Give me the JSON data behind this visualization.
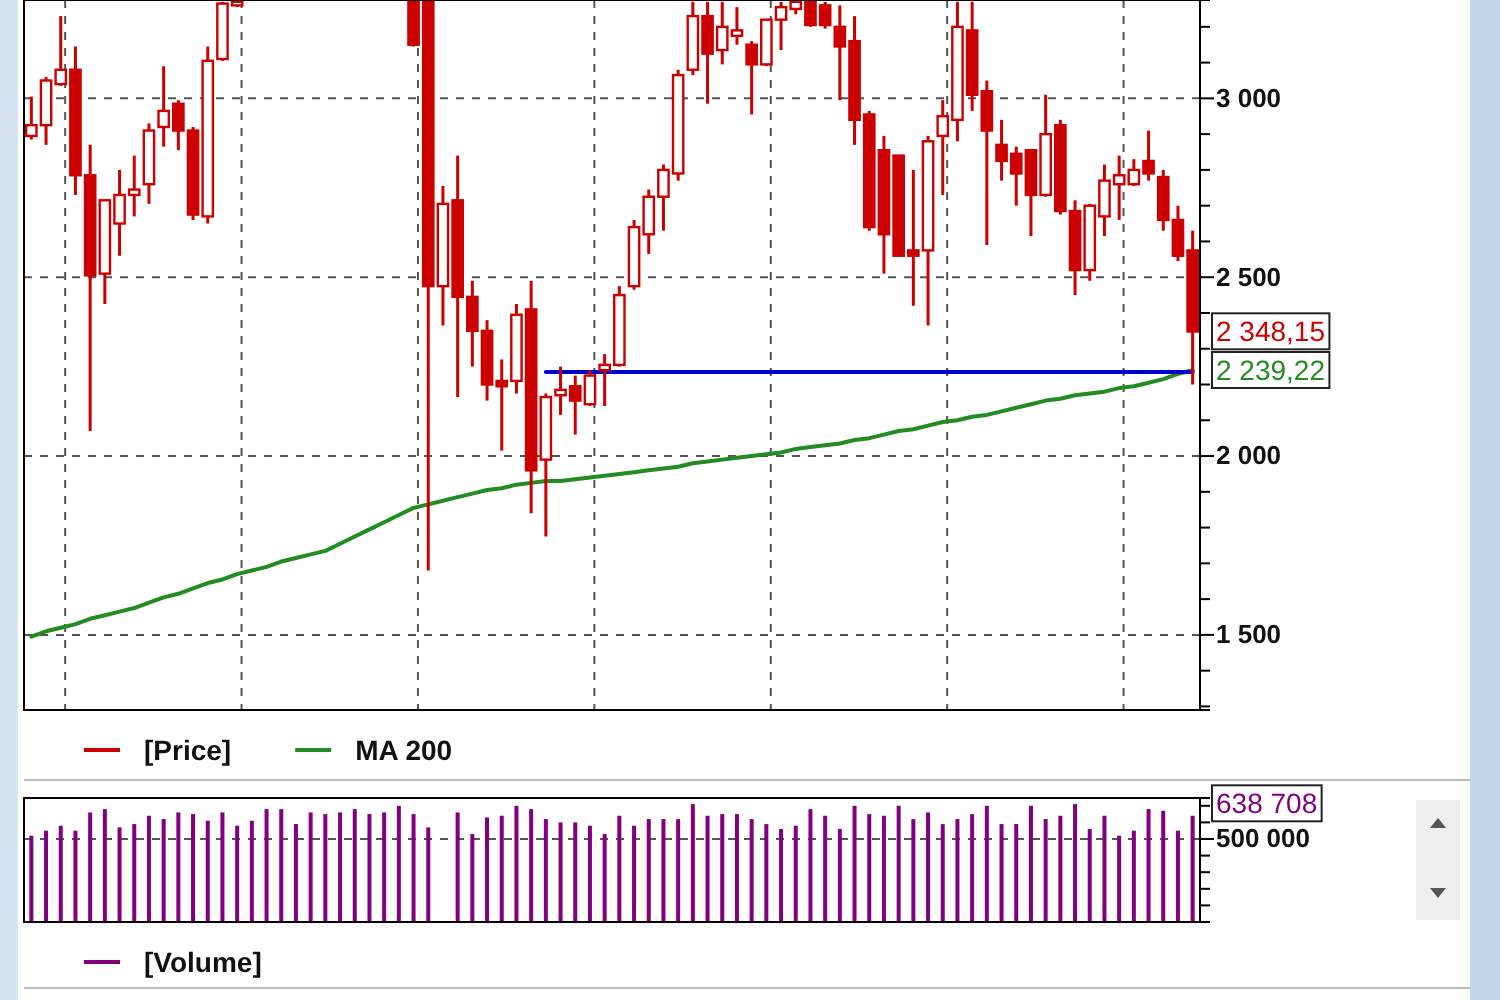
{
  "chart_data": [
    {
      "type": "candlestick",
      "categories": [
        null,
        null,
        null,
        null,
        null,
        null,
        null,
        null,
        null,
        null,
        null,
        null,
        null,
        null,
        null,
        null,
        null,
        null,
        null,
        null,
        null,
        null,
        null,
        null,
        null,
        null,
        null,
        null,
        null,
        null,
        null,
        null,
        null,
        null,
        null,
        null,
        null,
        null,
        null,
        null,
        null,
        null,
        null,
        null,
        null,
        null,
        null,
        null,
        null,
        null,
        null,
        null,
        null,
        null,
        null,
        null,
        null,
        null,
        null,
        null,
        null,
        null,
        null,
        null,
        null,
        null,
        null,
        null,
        null,
        null,
        null,
        null,
        null,
        null,
        null,
        null,
        null,
        null,
        null,
        null
      ],
      "series": [
        {
          "name": "[Price]",
          "color": "#cc0000",
          "ohlc": [
            [
              2895,
              3005,
              2885,
              2925
            ],
            [
              2925,
              3060,
              2870,
              3050
            ],
            [
              3040,
              3230,
              3035,
              3080
            ],
            [
              3080,
              3145,
              2730,
              2785
            ],
            [
              2785,
              2870,
              2070,
              2505
            ],
            [
              2510,
              2715,
              2425,
              2715
            ],
            [
              2650,
              2800,
              2560,
              2730
            ],
            [
              2730,
              2840,
              2670,
              2745
            ],
            [
              2760,
              2930,
              2705,
              2910
            ],
            [
              2920,
              3090,
              2865,
              2965
            ],
            [
              2985,
              2995,
              2855,
              2910
            ],
            [
              2910,
              2920,
              2660,
              2675
            ],
            [
              2670,
              3145,
              2650,
              3105
            ],
            [
              3110,
              3270,
              3105,
              3265
            ],
            [
              3260,
              3270,
              3255,
              3270
            ],
            null,
            null,
            null,
            null,
            null,
            null,
            null,
            null,
            null,
            null,
            null,
            [
              3270,
              3270,
              3145,
              3150
            ],
            [
              3270,
              3270,
              1680,
              2475
            ],
            [
              2475,
              2755,
              2365,
              2705
            ],
            [
              2715,
              2840,
              2165,
              2445
            ],
            [
              2445,
              2490,
              2250,
              2350
            ],
            [
              2350,
              2380,
              2155,
              2200
            ],
            [
              2210,
              2270,
              2015,
              2195
            ],
            [
              2210,
              2425,
              2175,
              2395
            ],
            [
              2410,
              2490,
              1840,
              1960
            ],
            [
              1990,
              2175,
              1775,
              2165
            ],
            [
              2170,
              2250,
              2115,
              2185
            ],
            [
              2195,
              2225,
              2060,
              2155
            ],
            [
              2145,
              2240,
              2140,
              2225
            ],
            [
              2240,
              2285,
              2140,
              2255
            ],
            [
              2255,
              2475,
              2250,
              2450
            ],
            [
              2475,
              2660,
              2465,
              2640
            ],
            [
              2620,
              2745,
              2565,
              2725
            ],
            [
              2725,
              2815,
              2630,
              2800
            ],
            [
              2790,
              3080,
              2770,
              3065
            ],
            [
              3080,
              3270,
              3065,
              3230
            ],
            [
              3230,
              3270,
              2985,
              3125
            ],
            [
              3135,
              3270,
              3095,
              3200
            ],
            [
              3175,
              3255,
              3150,
              3190
            ],
            [
              3150,
              3160,
              2955,
              3095
            ],
            [
              3095,
              3220,
              3090,
              3220
            ],
            [
              3220,
              3270,
              3135,
              3255
            ],
            [
              3250,
              3270,
              3235,
              3270
            ],
            [
              3270,
              3270,
              3200,
              3205
            ],
            [
              3260,
              3270,
              3195,
              3205
            ],
            [
              3200,
              3260,
              2995,
              3145
            ],
            [
              3160,
              3230,
              2870,
              2940
            ],
            [
              2955,
              2965,
              2630,
              2640
            ],
            [
              2855,
              2895,
              2510,
              2620
            ],
            [
              2840,
              2840,
              2560,
              2560
            ],
            [
              2575,
              2800,
              2420,
              2560
            ],
            [
              2575,
              2895,
              2365,
              2880
            ],
            [
              2895,
              2995,
              2730,
              2950
            ],
            [
              2940,
              3270,
              2880,
              3200
            ],
            [
              3190,
              3270,
              2965,
              3010
            ],
            [
              3020,
              3050,
              2590,
              2910
            ],
            [
              2870,
              2940,
              2770,
              2825
            ],
            [
              2845,
              2865,
              2700,
              2790
            ],
            [
              2855,
              2855,
              2615,
              2730
            ],
            [
              2730,
              3010,
              2725,
              2900
            ],
            [
              2925,
              2940,
              2675,
              2685
            ],
            [
              2685,
              2715,
              2450,
              2520
            ],
            [
              2520,
              2705,
              2490,
              2700
            ],
            [
              2670,
              2815,
              2615,
              2770
            ],
            [
              2760,
              2840,
              2660,
              2785
            ],
            [
              2760,
              2830,
              2755,
              2800
            ],
            [
              2825,
              2910,
              2770,
              2790
            ],
            [
              2780,
              2800,
              2630,
              2660
            ],
            [
              2660,
              2700,
              2545,
              2560
            ],
            [
              2575,
              2630,
              2200,
              2348.15
            ]
          ]
        },
        {
          "name": "MA 200",
          "type": "line",
          "color": "#228b22",
          "values": [
            1495,
            1510,
            1520,
            1530,
            1545,
            1555,
            1565,
            1575,
            1590,
            1605,
            1615,
            1630,
            1645,
            1655,
            1670,
            1680,
            1690,
            1705,
            1715,
            1725,
            1735,
            1755,
            1775,
            1795,
            1815,
            1835,
            1855,
            1865,
            1875,
            1885,
            1895,
            1905,
            1910,
            1920,
            1925,
            1930,
            1930,
            1935,
            1940,
            1945,
            1950,
            1955,
            1960,
            1965,
            1970,
            1980,
            1985,
            1990,
            1995,
            2000,
            2005,
            2010,
            2020,
            2025,
            2030,
            2035,
            2045,
            2050,
            2060,
            2070,
            2075,
            2085,
            2095,
            2100,
            2110,
            2115,
            2125,
            2135,
            2145,
            2155,
            2160,
            2170,
            2175,
            2180,
            2190,
            2195,
            2205,
            2215,
            2230,
            2240
          ]
        },
        {
          "type": "line",
          "color": "#0000cc",
          "values": [
            null,
            null,
            null,
            null,
            null,
            null,
            null,
            null,
            null,
            null,
            null,
            null,
            null,
            null,
            null,
            null,
            null,
            null,
            null,
            null,
            null,
            null,
            null,
            null,
            null,
            null,
            null,
            null,
            null,
            null,
            null,
            null,
            null,
            null,
            null,
            2235,
            2235,
            2235,
            2235,
            2235,
            2235,
            2235,
            2235,
            2235,
            2235,
            2235,
            2235,
            2235,
            2235,
            2235,
            2235,
            2235,
            2235,
            2235,
            2235,
            2235,
            2235,
            2235,
            2235,
            2235,
            2235,
            2235,
            2235,
            2235,
            2235,
            2235,
            2235,
            2235,
            2235,
            2235,
            2235,
            2235,
            2235,
            2235,
            2235,
            2235,
            2235,
            2235,
            2235,
            2235
          ]
        }
      ],
      "ylim": [
        1290,
        3275
      ],
      "yticks": [
        {
          "value": 1300,
          "label": null
        },
        {
          "value": 1400,
          "label": null
        },
        {
          "value": 1500,
          "label": "1 500"
        },
        {
          "value": 1600,
          "label": null
        },
        {
          "value": 1700,
          "label": null
        },
        {
          "value": 1800,
          "label": null
        },
        {
          "value": 1900,
          "label": null
        },
        {
          "value": 2000,
          "label": "2 000"
        },
        {
          "value": 2100,
          "label": null
        },
        {
          "value": 2200,
          "label": null
        },
        {
          "value": 2300,
          "label": null
        },
        {
          "value": 2400,
          "label": null
        },
        {
          "value": 2500,
          "label": "2 500"
        },
        {
          "value": 2600,
          "label": null
        },
        {
          "value": 2700,
          "label": null
        },
        {
          "value": 2800,
          "label": null
        },
        {
          "value": 2900,
          "label": null
        },
        {
          "value": 3000,
          "label": "3 000"
        },
        {
          "value": 3100,
          "label": null
        },
        {
          "value": 3200,
          "label": null
        }
      ],
      "annotations": [
        "2 348,15",
        "2 239,22"
      ],
      "grid": true,
      "legend": "bottom",
      "tick_labels": "y"
    },
    {
      "type": "bar",
      "categories": [
        null,
        null,
        null,
        null,
        null,
        null,
        null,
        null,
        null,
        null,
        null,
        null,
        null,
        null,
        null,
        null,
        null,
        null,
        null,
        null,
        null,
        null,
        null,
        null,
        null,
        null,
        null,
        null,
        null,
        null,
        null,
        null,
        null,
        null,
        null,
        null,
        null,
        null,
        null,
        null,
        null,
        null,
        null,
        null,
        null,
        null,
        null,
        null,
        null,
        null,
        null,
        null,
        null,
        null,
        null,
        null,
        null,
        null,
        null,
        null,
        null,
        null,
        null,
        null,
        null,
        null,
        null,
        null,
        null,
        null,
        null,
        null,
        null,
        null,
        null,
        null,
        null,
        null,
        null,
        null
      ],
      "series": [
        {
          "name": "[Volume]",
          "color": "#800080",
          "values": [
            520000,
            550000,
            580000,
            550000,
            660000,
            680000,
            570000,
            590000,
            640000,
            620000,
            660000,
            650000,
            610000,
            660000,
            580000,
            610000,
            680000,
            680000,
            590000,
            660000,
            650000,
            660000,
            680000,
            650000,
            660000,
            700000,
            650000,
            570000,
            null,
            660000,
            530000,
            630000,
            640000,
            700000,
            680000,
            620000,
            600000,
            600000,
            580000,
            530000,
            640000,
            580000,
            620000,
            620000,
            620000,
            710000,
            640000,
            650000,
            650000,
            620000,
            590000,
            560000,
            580000,
            680000,
            640000,
            560000,
            700000,
            650000,
            640000,
            700000,
            620000,
            660000,
            590000,
            620000,
            650000,
            700000,
            590000,
            590000,
            700000,
            620000,
            640000,
            710000,
            560000,
            640000,
            520000,
            550000,
            680000,
            670000,
            550000,
            640000
          ]
        }
      ],
      "ylim": [
        0,
        747000
      ],
      "yticks": [
        {
          "value": 100000,
          "label": null
        },
        {
          "value": 200000,
          "label": null
        },
        {
          "value": 300000,
          "label": null
        },
        {
          "value": 400000,
          "label": null
        },
        {
          "value": 500000,
          "label": "500 000"
        },
        {
          "value": 600000,
          "label": null
        },
        {
          "value": 700000,
          "label": null
        }
      ],
      "annotations": [
        "638 708"
      ],
      "grid": "y",
      "legend": "bottom",
      "tick_labels": "y"
    }
  ]
}
